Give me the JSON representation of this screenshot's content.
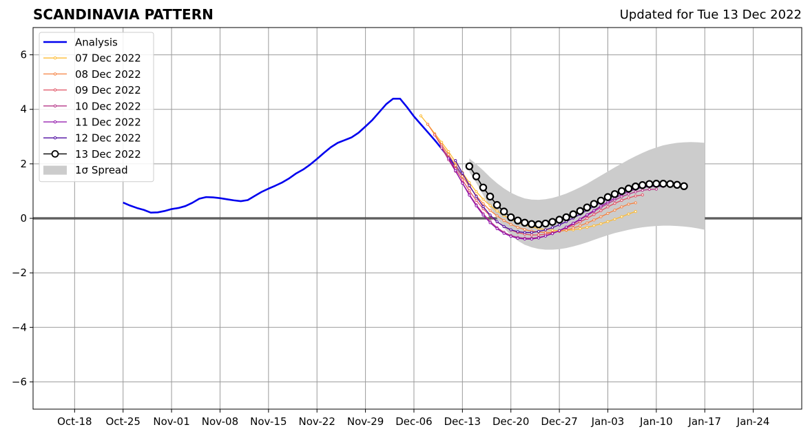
{
  "chart_data": {
    "type": "line",
    "title": "SCANDINAVIA PATTERN",
    "subtitle": "Updated for Tue 13 Dec 2022",
    "xlabel": "",
    "ylabel": "",
    "xlim": [
      "2022-10-12",
      "2023-01-31"
    ],
    "ylim": [
      -7,
      7
    ],
    "grid": true,
    "legend_position": "top-left",
    "x_tick_labels": [
      "Oct-18",
      "Oct-25",
      "Nov-01",
      "Nov-08",
      "Nov-15",
      "Nov-22",
      "Nov-29",
      "Dec-06",
      "Dec-13",
      "Dec-20",
      "Dec-27",
      "Jan-03",
      "Jan-10",
      "Jan-17",
      "Jan-24"
    ],
    "x_tick_dates": [
      "2022-10-18",
      "2022-10-25",
      "2022-11-01",
      "2022-11-08",
      "2022-11-15",
      "2022-11-22",
      "2022-11-29",
      "2022-12-06",
      "2022-12-13",
      "2022-12-20",
      "2022-12-27",
      "2023-01-03",
      "2023-01-10",
      "2023-01-17",
      "2023-01-24"
    ],
    "y_tick_labels": [
      "−6",
      "−4",
      "−2",
      "0",
      "2",
      "4",
      "6"
    ],
    "y_tick_values": [
      -6,
      -4,
      -2,
      0,
      2,
      4,
      6
    ],
    "analysis": {
      "name": "Analysis",
      "color": "#0000ee",
      "dates": [
        "2022-10-25",
        "2022-10-26",
        "2022-10-27",
        "2022-10-28",
        "2022-10-29",
        "2022-10-30",
        "2022-10-31",
        "2022-11-01",
        "2022-11-02",
        "2022-11-03",
        "2022-11-04",
        "2022-11-05",
        "2022-11-06",
        "2022-11-07",
        "2022-11-08",
        "2022-11-09",
        "2022-11-10",
        "2022-11-11",
        "2022-11-12",
        "2022-11-13",
        "2022-11-14",
        "2022-11-15",
        "2022-11-16",
        "2022-11-17",
        "2022-11-18",
        "2022-11-19",
        "2022-11-20",
        "2022-11-21",
        "2022-11-22",
        "2022-11-23",
        "2022-11-24",
        "2022-11-25",
        "2022-11-26",
        "2022-11-27",
        "2022-11-28",
        "2022-11-29",
        "2022-11-30",
        "2022-12-01",
        "2022-12-02",
        "2022-12-03",
        "2022-12-04",
        "2022-12-05",
        "2022-12-06",
        "2022-12-07",
        "2022-12-08",
        "2022-12-09",
        "2022-12-10",
        "2022-12-11",
        "2022-12-12",
        "2022-12-13"
      ],
      "values": [
        0.58,
        0.47,
        0.38,
        0.31,
        0.21,
        0.22,
        0.27,
        0.34,
        0.38,
        0.45,
        0.57,
        0.72,
        0.78,
        0.77,
        0.74,
        0.7,
        0.66,
        0.63,
        0.67,
        0.82,
        0.97,
        1.09,
        1.2,
        1.32,
        1.47,
        1.65,
        1.79,
        1.97,
        2.18,
        2.4,
        2.61,
        2.77,
        2.87,
        2.97,
        3.14,
        3.37,
        3.61,
        3.9,
        4.19,
        4.39,
        4.39,
        4.08,
        3.74,
        3.45,
        3.16,
        2.87,
        2.56,
        2.24,
        1.93,
        1.56
      ]
    },
    "forecasts": [
      {
        "name": "07 Dec 2022",
        "color": "#fdbb32",
        "start": "2022-12-07",
        "values": [
          3.76,
          3.45,
          3.11,
          2.79,
          2.45,
          2.07,
          1.68,
          1.31,
          0.98,
          0.7,
          0.47,
          0.27,
          0.1,
          -0.04,
          -0.15,
          -0.24,
          -0.32,
          -0.37,
          -0.41,
          -0.44,
          -0.45,
          -0.44,
          -0.42,
          -0.38,
          -0.33,
          -0.27,
          -0.2,
          -0.12,
          -0.03,
          0.06,
          0.16,
          0.25
        ]
      },
      {
        "name": "08 Dec 2022",
        "color": "#f58141",
        "start": "2022-12-08",
        "values": [
          3.45,
          3.07,
          2.7,
          2.34,
          1.94,
          1.54,
          1.17,
          0.83,
          0.54,
          0.29,
          0.09,
          -0.08,
          -0.22,
          -0.33,
          -0.41,
          -0.47,
          -0.5,
          -0.52,
          -0.51,
          -0.48,
          -0.43,
          -0.36,
          -0.27,
          -0.17,
          -0.06,
          0.06,
          0.18,
          0.3,
          0.42,
          0.52,
          0.57
        ]
      },
      {
        "name": "09 Dec 2022",
        "color": "#e05062",
        "start": "2022-12-09",
        "values": [
          3.06,
          2.64,
          2.22,
          1.82,
          1.41,
          1.01,
          0.66,
          0.35,
          0.09,
          -0.13,
          -0.3,
          -0.43,
          -0.52,
          -0.58,
          -0.61,
          -0.61,
          -0.58,
          -0.53,
          -0.45,
          -0.36,
          -0.25,
          -0.13,
          0.0,
          0.14,
          0.28,
          0.42,
          0.55,
          0.66,
          0.75,
          0.82,
          0.86
        ]
      },
      {
        "name": "10 Dec 2022",
        "color": "#b53487",
        "start": "2022-12-10",
        "values": [
          2.58,
          2.15,
          1.73,
          1.3,
          0.88,
          0.5,
          0.17,
          -0.11,
          -0.34,
          -0.51,
          -0.63,
          -0.7,
          -0.73,
          -0.73,
          -0.7,
          -0.64,
          -0.56,
          -0.46,
          -0.34,
          -0.2,
          -0.05,
          0.1,
          0.25,
          0.4,
          0.54,
          0.67,
          0.79,
          0.89,
          0.97,
          1.03,
          1.06,
          1.07
        ]
      },
      {
        "name": "11 Dec 2022",
        "color": "#8c0ba8",
        "start": "2022-12-11",
        "values": [
          2.21,
          1.75,
          1.29,
          0.85,
          0.46,
          0.12,
          -0.16,
          -0.38,
          -0.55,
          -0.66,
          -0.73,
          -0.76,
          -0.76,
          -0.72,
          -0.65,
          -0.56,
          -0.45,
          -0.32,
          -0.18,
          -0.03,
          0.13,
          0.29,
          0.45,
          0.6,
          0.74,
          0.87,
          0.98,
          1.07,
          1.13,
          1.17,
          1.18,
          1.17
        ]
      },
      {
        "name": "12 Dec 2022",
        "color": "#4c08a0",
        "start": "2022-12-12",
        "values": [
          2.12,
          1.66,
          1.21,
          0.8,
          0.43,
          0.12,
          -0.12,
          -0.3,
          -0.42,
          -0.49,
          -0.52,
          -0.52,
          -0.48,
          -0.42,
          -0.34,
          -0.24,
          -0.12,
          0.01,
          0.15,
          0.3,
          0.44,
          0.58,
          0.72,
          0.84,
          0.95,
          1.04,
          1.11,
          1.16,
          1.18,
          1.19,
          1.18
        ]
      },
      {
        "name": "13 Dec 2022",
        "color": "#000000",
        "start": "2022-12-14",
        "marker": "open-circle",
        "values": [
          1.91,
          1.54,
          1.13,
          0.8,
          0.49,
          0.25,
          0.04,
          -0.08,
          -0.16,
          -0.21,
          -0.22,
          -0.19,
          -0.13,
          -0.05,
          0.04,
          0.15,
          0.27,
          0.4,
          0.53,
          0.65,
          0.78,
          0.89,
          1.0,
          1.09,
          1.17,
          1.22,
          1.26,
          1.27,
          1.27,
          1.26,
          1.23,
          1.18
        ]
      }
    ],
    "spread": {
      "name": "1σ Spread",
      "color": "#cccccc",
      "start": "2022-12-14",
      "upper": [
        2.2,
        1.99,
        1.76,
        1.51,
        1.29,
        1.1,
        0.94,
        0.82,
        0.73,
        0.69,
        0.68,
        0.7,
        0.75,
        0.82,
        0.91,
        1.02,
        1.14,
        1.27,
        1.42,
        1.57,
        1.72,
        1.87,
        2.01,
        2.15,
        2.28,
        2.4,
        2.51,
        2.6,
        2.68,
        2.73,
        2.77,
        2.79,
        2.8,
        2.79,
        2.77
      ],
      "lower": [
        1.7,
        1.3,
        0.85,
        0.4,
        0.0,
        -0.35,
        -0.62,
        -0.82,
        -0.97,
        -1.06,
        -1.12,
        -1.15,
        -1.15,
        -1.13,
        -1.09,
        -1.03,
        -0.96,
        -0.88,
        -0.79,
        -0.7,
        -0.62,
        -0.54,
        -0.48,
        -0.42,
        -0.37,
        -0.33,
        -0.3,
        -0.28,
        -0.27,
        -0.27,
        -0.28,
        -0.3,
        -0.33,
        -0.37,
        -0.42
      ]
    }
  }
}
